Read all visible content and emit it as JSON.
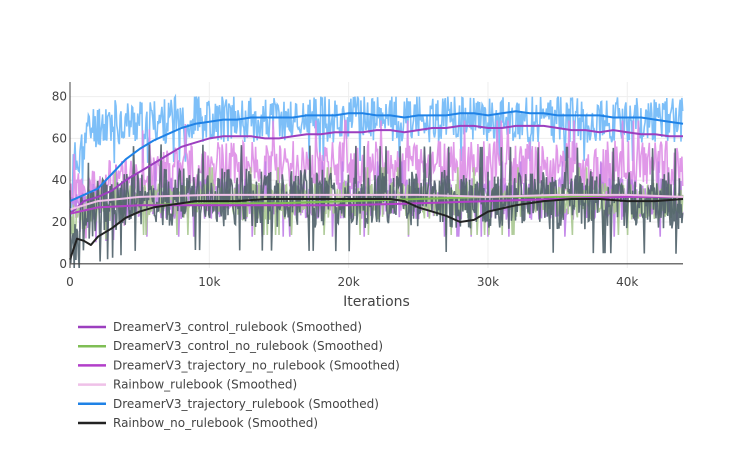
{
  "chart_data": {
    "type": "line",
    "title": "",
    "xlabel": "Iterations",
    "ylabel": "",
    "xlim": [
      0,
      44000
    ],
    "ylim": [
      -2,
      87
    ],
    "x_ticks": [
      0,
      10000,
      20000,
      30000,
      40000
    ],
    "x_tick_labels": [
      "0",
      "10k",
      "20k",
      "30k",
      "40k"
    ],
    "y_ticks": [
      0,
      20,
      40,
      60,
      80
    ],
    "y_tick_labels": [
      "0",
      "20",
      "40",
      "60",
      "80"
    ],
    "grid": true,
    "legend_position": "bottom",
    "raw_series": [
      {
        "color": "#6fb8f7",
        "base": 69,
        "noise": 11,
        "seed": 11,
        "x": [
          0,
          200,
          700,
          1500,
          2500,
          5000,
          10000,
          20000,
          30000,
          44000
        ],
        "values": [
          20,
          45,
          55,
          65,
          68,
          68,
          69,
          69,
          69,
          69
        ]
      },
      {
        "color": "#dd8de6",
        "base": 45,
        "noise": 12,
        "seed": 23,
        "x": [
          0,
          1500,
          5000,
          10000,
          44000
        ],
        "values": [
          30,
          35,
          42,
          47,
          47
        ]
      },
      {
        "color": "#c07fe8",
        "base": 32,
        "noise": 10,
        "seed": 37,
        "x": [
          0,
          1500,
          5000,
          44000
        ],
        "values": [
          22,
          28,
          31,
          31
        ]
      },
      {
        "color": "#a8c890",
        "base": 30,
        "noise": 9,
        "seed": 41,
        "x": [
          0,
          1500,
          5000,
          44000
        ],
        "values": [
          20,
          27,
          30,
          30
        ]
      },
      {
        "color": "#4f6169",
        "base": 30,
        "noise": 14,
        "seed": 53,
        "x": [
          0,
          1500,
          5000,
          44000
        ],
        "values": [
          10,
          25,
          32,
          30
        ]
      }
    ],
    "series": [
      {
        "name": "DreamerV3_control_rulebook (Smoothed)",
        "color": "#9c3fbf",
        "x": [
          0,
          1000,
          2000,
          3000,
          4000,
          5000,
          6000,
          7000,
          8000,
          9000,
          10000,
          11000,
          12000,
          13000,
          14000,
          15000,
          16000,
          17000,
          18000,
          19000,
          20000,
          21000,
          22000,
          23000,
          24000,
          25000,
          26000,
          27000,
          28000,
          29000,
          30000,
          31000,
          32000,
          33000,
          34000,
          35000,
          36000,
          37000,
          38000,
          39000,
          40000,
          41000,
          42000,
          43000,
          44000
        ],
        "values": [
          24,
          30,
          32,
          35,
          40,
          44,
          48,
          52,
          56,
          58,
          60,
          61,
          61,
          61,
          60,
          60,
          61,
          62,
          62,
          63,
          63,
          63,
          64,
          64,
          63,
          64,
          65,
          65,
          66,
          66,
          65,
          65,
          66,
          66,
          66,
          65,
          64,
          64,
          63,
          64,
          63,
          62,
          62,
          61,
          61
        ]
      },
      {
        "name": "DreamerV3_control_no_rulebook (Smoothed)",
        "color": "#7fbe55",
        "x": [
          0,
          2000,
          5000,
          10000,
          15000,
          20000,
          25000,
          30000,
          35000,
          40000,
          44000
        ],
        "values": [
          24,
          27,
          28,
          29,
          29,
          30,
          31,
          32,
          32,
          32,
          32
        ]
      },
      {
        "name": "DreamerV3_trajectory_no_rulebook (Smoothed)",
        "color": "#b23fc9",
        "x": [
          0,
          2000,
          5000,
          10000,
          15000,
          20000,
          25000,
          30000,
          35000,
          40000,
          44000
        ],
        "values": [
          24,
          27,
          28,
          28,
          28,
          28,
          29,
          30,
          31,
          32,
          32
        ]
      },
      {
        "name": "Rainbow_rulebook (Smoothed)",
        "color": "#efc1e8",
        "x": [
          0,
          2000,
          5000,
          10000,
          15000,
          20000,
          25000,
          30000,
          35000,
          40000,
          44000
        ],
        "values": [
          26,
          30,
          32,
          33,
          33,
          33,
          33,
          32,
          33,
          33,
          32
        ]
      },
      {
        "name": "DreamerV3_trajectory_rulebook (Smoothed)",
        "color": "#1f82e6",
        "x": [
          0,
          1000,
          2000,
          3000,
          4000,
          5000,
          6000,
          7000,
          8000,
          9000,
          10000,
          11000,
          12000,
          13000,
          14000,
          15000,
          16000,
          17000,
          18000,
          19000,
          20000,
          21000,
          22000,
          23000,
          24000,
          25000,
          26000,
          27000,
          28000,
          29000,
          30000,
          31000,
          32000,
          33000,
          34000,
          35000,
          36000,
          37000,
          38000,
          39000,
          40000,
          41000,
          42000,
          43000,
          44000
        ],
        "values": [
          30,
          33,
          36,
          43,
          50,
          55,
          59,
          62,
          65,
          67,
          68,
          69,
          69,
          70,
          70,
          70,
          70,
          71,
          71,
          71,
          72,
          72,
          71,
          71,
          70,
          71,
          71,
          71,
          72,
          72,
          71,
          72,
          73,
          72,
          72,
          71,
          71,
          71,
          71,
          70,
          70,
          70,
          69,
          68,
          67
        ]
      },
      {
        "name": "Rainbow_no_rulebook (Smoothed)",
        "color": "#222222",
        "x": [
          0,
          500,
          1000,
          1500,
          2000,
          3000,
          4000,
          5000,
          6000,
          7000,
          8000,
          9000,
          10000,
          12000,
          14000,
          16000,
          18000,
          20000,
          22000,
          23000,
          24000,
          25000,
          26000,
          27000,
          28000,
          29000,
          30000,
          32000,
          34000,
          36000,
          38000,
          40000,
          42000,
          44000
        ],
        "values": [
          2,
          12,
          11,
          9,
          13,
          17,
          22,
          25,
          27,
          28,
          29,
          30,
          30,
          30,
          31,
          31,
          31,
          31,
          31,
          31,
          30,
          27,
          25,
          23,
          20,
          21,
          25,
          28,
          30,
          31,
          31,
          30,
          30,
          31
        ]
      }
    ]
  }
}
